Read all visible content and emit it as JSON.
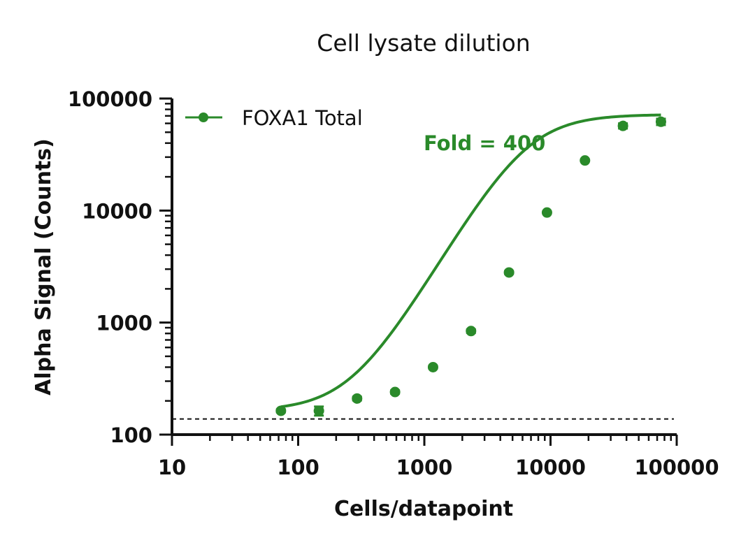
{
  "chart_data": {
    "type": "scatter",
    "title": "Cell lysate dilution",
    "xlabel": "Cells/datapoint",
    "ylabel": "Alpha Signal (Counts)",
    "xscale": "log",
    "yscale": "log",
    "xlim": [
      10,
      100000
    ],
    "ylim": [
      100,
      100000
    ],
    "xticks": [
      10,
      100,
      1000,
      10000,
      100000
    ],
    "yticks": [
      100,
      1000,
      10000,
      100000
    ],
    "xtick_labels": [
      "10",
      "100",
      "1000",
      "10000",
      "100000"
    ],
    "ytick_labels": [
      "100",
      "1000",
      "10000",
      "100000"
    ],
    "grid": false,
    "legend_position": "top-left",
    "series": [
      {
        "name": "FOXA1 Total",
        "color": "#2a8a2a",
        "marker": "circle",
        "x": [
          73,
          146,
          293,
          586,
          1172,
          2344,
          4688,
          9375,
          18750,
          37500,
          75000
        ],
        "y": [
          163,
          163,
          210,
          240,
          400,
          840,
          2800,
          9600,
          28000,
          57000,
          62000
        ],
        "y_err": [
          5,
          15,
          8,
          8,
          10,
          30,
          80,
          200,
          400,
          3000,
          4000
        ]
      }
    ],
    "fit_curve": {
      "model": "4PL",
      "bottom": 163,
      "top": 72000,
      "ec50": 6500,
      "hill": 1.9,
      "x_range": [
        73,
        75000
      ]
    },
    "baseline": {
      "y": 138,
      "style": "dashed"
    },
    "annotations": [
      {
        "text": "Fold = 400",
        "x": 3000,
        "y": 40000
      }
    ]
  }
}
